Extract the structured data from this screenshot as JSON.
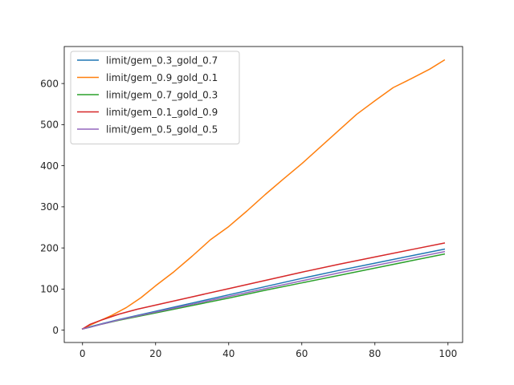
{
  "chart_data": {
    "type": "line",
    "title": "",
    "xlabel": "",
    "ylabel": "",
    "xlim": [
      -5,
      104
    ],
    "ylim": [
      -30,
      690
    ],
    "xticks": [
      0,
      20,
      40,
      60,
      80,
      100
    ],
    "yticks": [
      0,
      100,
      200,
      300,
      400,
      500,
      600
    ],
    "grid": false,
    "legend_position": "top-left",
    "series": [
      {
        "name": "limit/gem_0.3_gold_0.7",
        "color": "#1f77b4",
        "x": [
          0,
          2,
          5,
          10,
          20,
          30,
          40,
          50,
          60,
          70,
          80,
          90,
          99
        ],
        "y": [
          3,
          8,
          15,
          26,
          46,
          66,
          86,
          106,
          126,
          145,
          163,
          181,
          197
        ]
      },
      {
        "name": "limit/gem_0.9_gold_0.1",
        "color": "#ff7f0e",
        "x": [
          0,
          2,
          5,
          8,
          12,
          16,
          20,
          25,
          30,
          35,
          40,
          45,
          50,
          55,
          60,
          65,
          70,
          75,
          80,
          85,
          90,
          95,
          99
        ],
        "y": [
          3,
          12,
          24,
          36,
          55,
          79,
          108,
          142,
          180,
          220,
          252,
          290,
          330,
          368,
          405,
          445,
          485,
          525,
          558,
          590,
          612,
          635,
          657
        ]
      },
      {
        "name": "limit/gem_0.7_gold_0.3",
        "color": "#2ca02c",
        "x": [
          0,
          2,
          5,
          10,
          20,
          30,
          40,
          50,
          60,
          70,
          80,
          90,
          99
        ],
        "y": [
          3,
          7,
          14,
          24,
          42,
          60,
          78,
          97,
          115,
          133,
          151,
          169,
          185
        ]
      },
      {
        "name": "limit/gem_0.1_gold_0.9",
        "color": "#d62728",
        "x": [
          0,
          2,
          5,
          10,
          15,
          20,
          30,
          40,
          50,
          60,
          70,
          80,
          90,
          99
        ],
        "y": [
          3,
          14,
          24,
          39,
          51,
          61,
          81,
          101,
          121,
          141,
          160,
          178,
          196,
          212
        ]
      },
      {
        "name": "limit/gem_0.5_gold_0.5",
        "color": "#9467bd",
        "x": [
          0,
          2,
          5,
          10,
          20,
          30,
          40,
          50,
          60,
          70,
          80,
          90,
          99
        ],
        "y": [
          3,
          7,
          14,
          25,
          44,
          63,
          82,
          101,
          120,
          139,
          157,
          175,
          191
        ]
      }
    ]
  }
}
